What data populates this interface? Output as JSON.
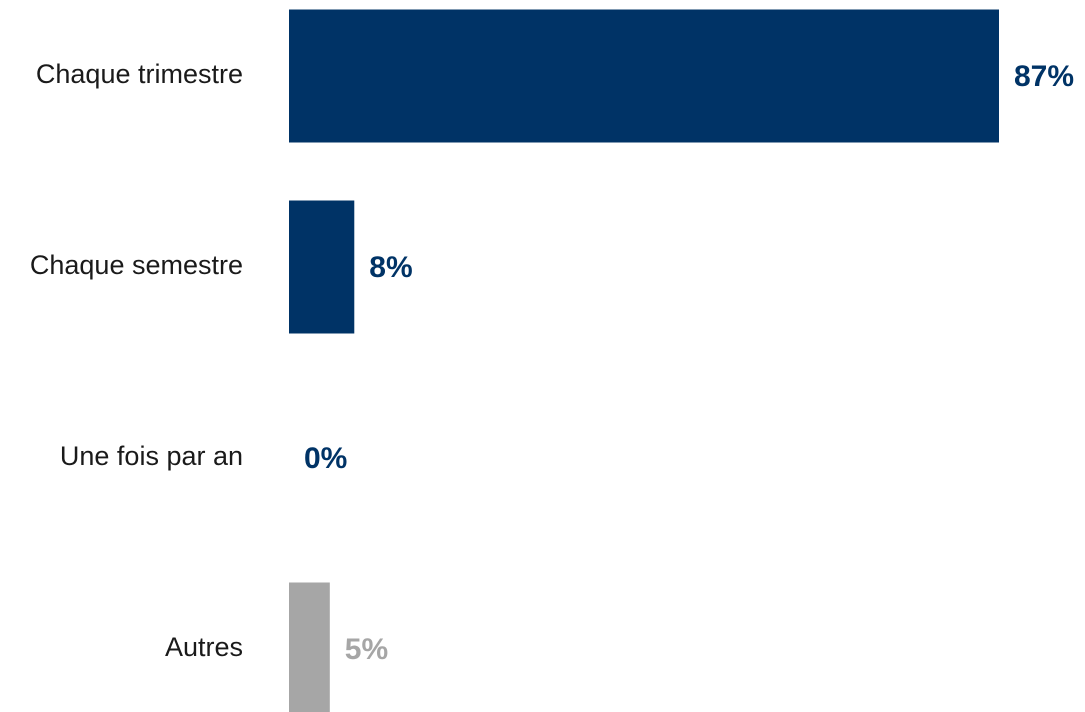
{
  "chart_data": {
    "type": "bar",
    "orientation": "horizontal",
    "title": "",
    "xlabel": "",
    "ylabel": "",
    "categories": [
      "Chaque trimestre",
      "Chaque semestre",
      "Une fois par an",
      "Autres"
    ],
    "values": [
      87,
      8,
      0,
      5
    ],
    "value_labels": [
      "87%",
      "8%",
      "0%",
      "5%"
    ],
    "xlim": [
      0,
      87
    ],
    "colors": [
      "#003366",
      "#003366",
      "#003366",
      "#a6a6a6"
    ],
    "grid": false,
    "legend": "none"
  }
}
